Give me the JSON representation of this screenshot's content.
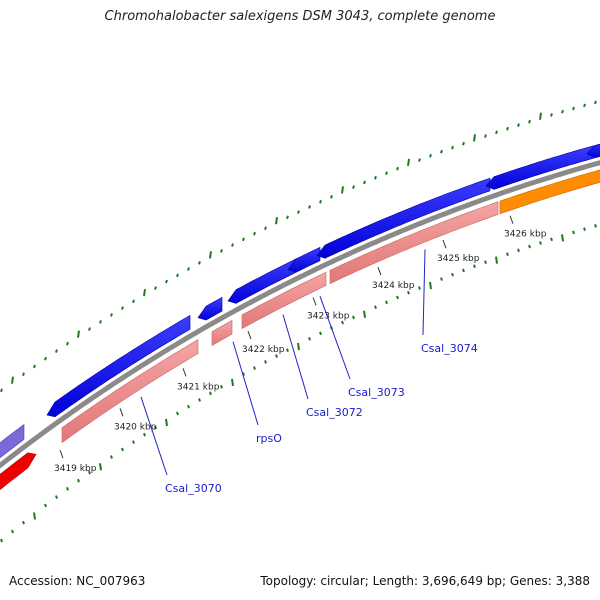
{
  "title": "Chromohalobacter salexigens DSM 3043, complete genome",
  "footer": {
    "accession": "Accession: NC_007963",
    "topology": "Topology: circular; Length: 3,696,649 bp; Genes: 3,388"
  },
  "colors": {
    "backbone": "#8a8a8a",
    "forward_cds": "#0000ee",
    "reverse_cds": "#f08c8c",
    "orange_feature": "#ff8c00",
    "red_feature": "#ee0000",
    "purple_feature": "#7a6ad8",
    "gc_ticks": "#1e7a1e",
    "label": "#1a1acc"
  },
  "scale_labels": [
    "3419 kbp",
    "3420 kbp",
    "3421 kbp",
    "3422 kbp",
    "3423 kbp",
    "3424 kbp",
    "3425 kbp",
    "3426 kbp"
  ],
  "genes": [
    {
      "label": "Csal_3070"
    },
    {
      "label": "rpsO"
    },
    {
      "label": "Csal_3072"
    },
    {
      "label": "Csal_3073"
    },
    {
      "label": "Csal_3074"
    }
  ]
}
